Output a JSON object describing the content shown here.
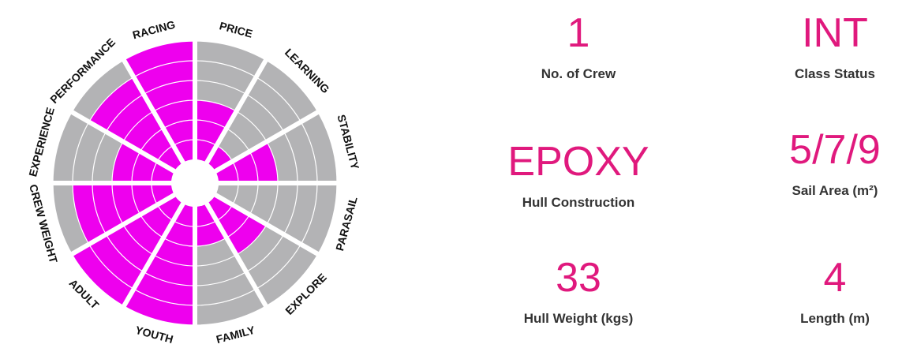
{
  "chart_data": {
    "type": "polar-area",
    "categories": [
      "PRICE",
      "LEARNING",
      "STABILITY",
      "PARASAIL",
      "EXPLORE",
      "FAMILY",
      "YOUTH",
      "ADULT",
      "CREW WEIGHT",
      "EXPERIENCE",
      "PERFORMANCE",
      "RACING"
    ],
    "values": [
      3,
      1,
      3,
      0,
      3,
      2,
      6,
      6,
      5,
      3,
      5,
      6
    ],
    "rlim": [
      0,
      6
    ],
    "rticks": [
      1,
      2,
      3,
      4,
      5,
      6
    ],
    "color": "#ee00ee",
    "background_color": "#b3b3b5"
  },
  "stats": [
    {
      "value": "1",
      "label": "No. of Crew"
    },
    {
      "value": "INT",
      "label": "Class Status"
    },
    {
      "value": "EPOXY",
      "label": "Hull Construction"
    },
    {
      "value": "5/7/9",
      "label": "Sail Area (m²)"
    },
    {
      "value": "33",
      "label": "Hull Weight (kgs)"
    },
    {
      "value": "4",
      "label": "Length (m)"
    }
  ]
}
